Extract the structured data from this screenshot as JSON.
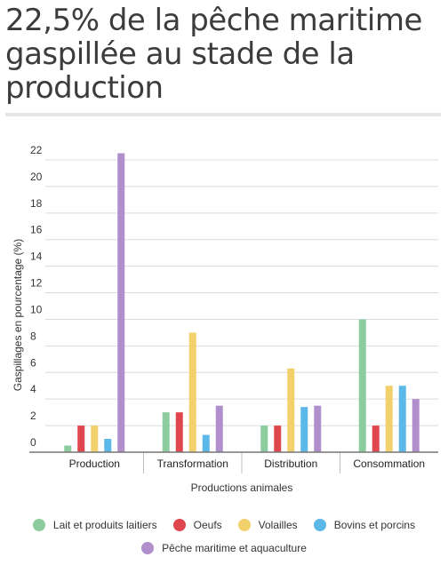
{
  "title": "22,5% de la pêche maritime gaspillée au stade de la production",
  "chart_data": {
    "type": "bar",
    "xlabel": "Productions animales",
    "ylabel": "Gaspillages en pourcentage (%)",
    "ylim": [
      0,
      22
    ],
    "yticks": [
      0,
      2,
      4,
      6,
      8,
      10,
      12,
      14,
      16,
      18,
      20,
      22
    ],
    "grid": true,
    "legend_position": "bottom",
    "categories": [
      "Production",
      "Transformation",
      "Distribution",
      "Consommation"
    ],
    "series": [
      {
        "name": "Lait et produits laitiers",
        "color": "#8ccc9e",
        "values": [
          0.5,
          3,
          2,
          10
        ]
      },
      {
        "name": "Oeufs",
        "color": "#e0464d",
        "values": [
          2,
          3,
          2,
          2
        ]
      },
      {
        "name": "Volailles",
        "color": "#f2d06b",
        "values": [
          2,
          9,
          6.3,
          5
        ]
      },
      {
        "name": "Bovins et porcins",
        "color": "#5cb8e8",
        "values": [
          1,
          1.3,
          3.4,
          5
        ]
      },
      {
        "name": "Pêche maritime et aquaculture",
        "color": "#b08fcc",
        "values": [
          22.5,
          3.5,
          3.5,
          4
        ]
      }
    ]
  }
}
